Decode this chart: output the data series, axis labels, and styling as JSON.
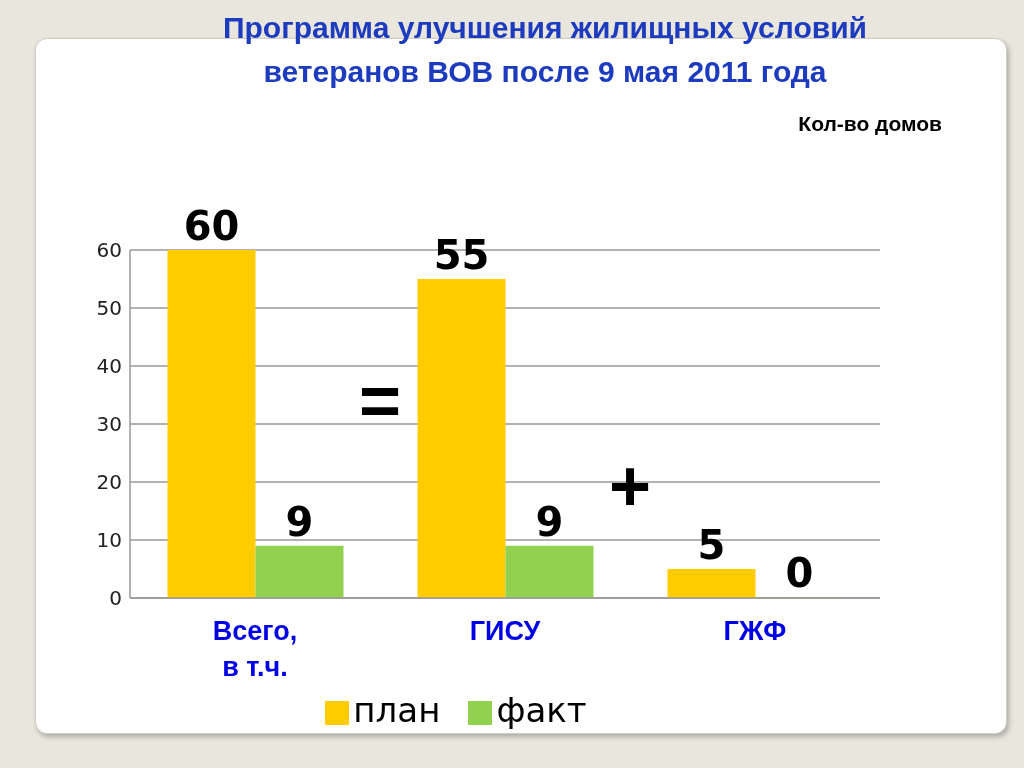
{
  "chart_data": {
    "type": "bar",
    "title": "Программа улучшения жилищных условий ветеранов ВОВ после 9 мая 2011 года",
    "ylabel": "Кол-во домов",
    "categories": [
      "Всего, в т.ч.",
      "ГИСУ",
      "ГЖФ"
    ],
    "series": [
      {
        "name": "план",
        "color": "#ffcc00",
        "values": [
          60,
          55,
          5
        ]
      },
      {
        "name": "факт",
        "color": "#92d050",
        "values": [
          9,
          9,
          0
        ]
      }
    ],
    "ylim": [
      0,
      60
    ],
    "yticks": [
      0,
      10,
      20,
      30,
      40,
      50,
      60
    ],
    "grid": "y",
    "legend": "bottom",
    "data_labels": true,
    "annotations": [
      "=",
      "+"
    ]
  }
}
